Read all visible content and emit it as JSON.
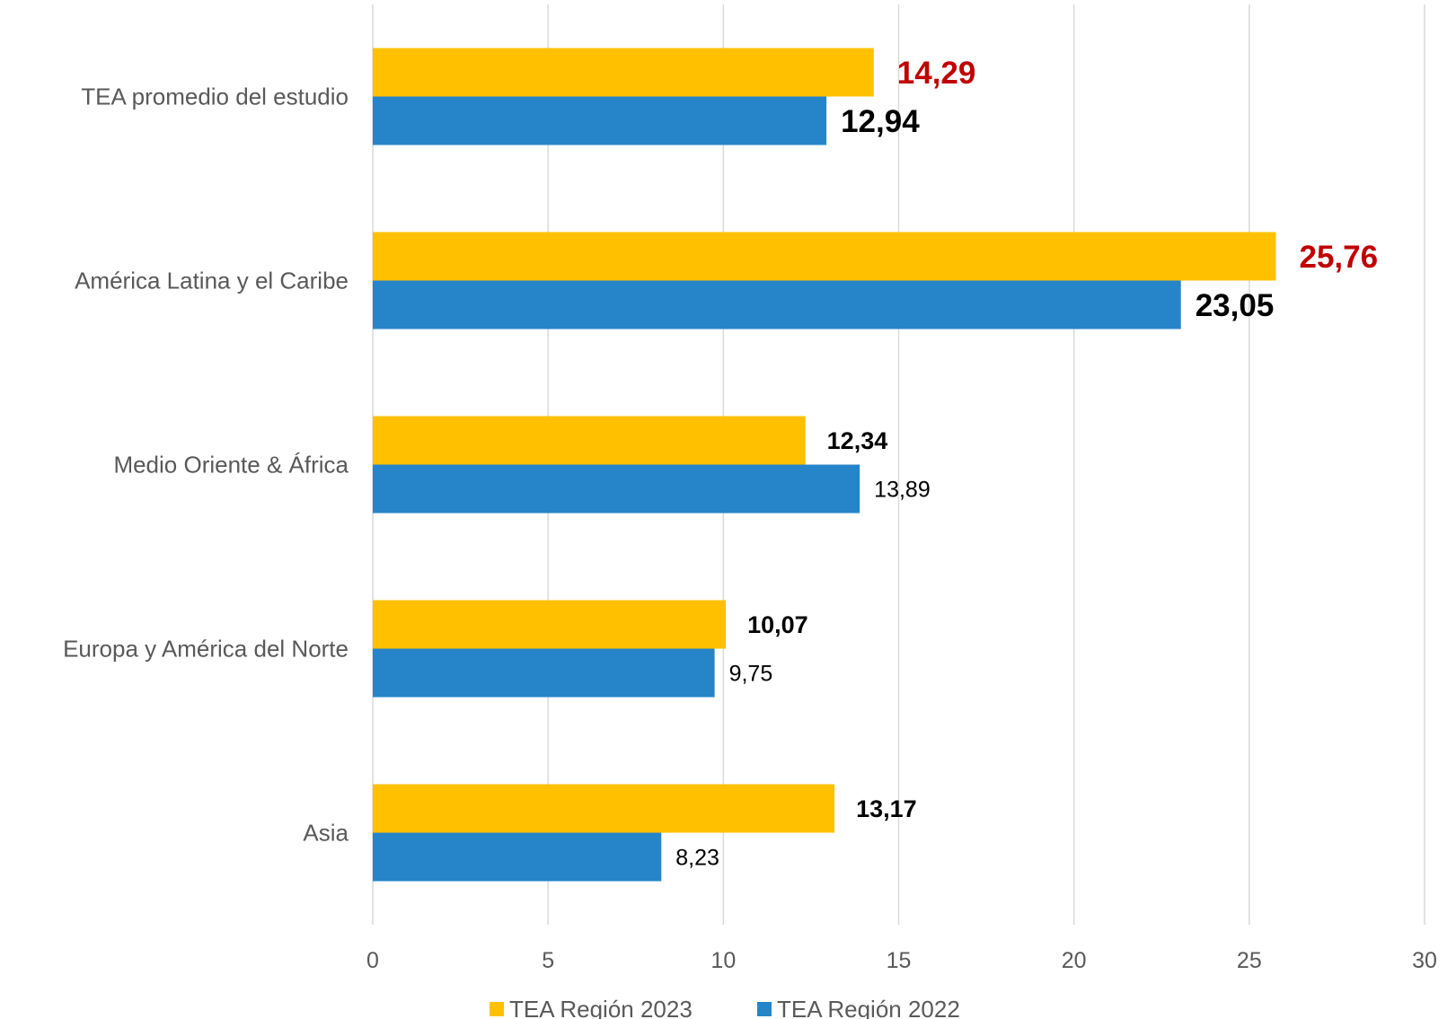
{
  "chart_data": {
    "type": "bar",
    "orientation": "horizontal",
    "title": "",
    "xlabel": "",
    "ylabel": "",
    "xlim": [
      0,
      30
    ],
    "ticks": [
      0,
      5,
      10,
      15,
      20,
      25,
      30
    ],
    "grid": true,
    "legend_position": "bottom",
    "categories": [
      "TEA promedio del estudio",
      "América Latina y el Caribe",
      "Medio Oriente & África",
      "Europa y América del Norte",
      "Asia"
    ],
    "series": [
      {
        "name": "TEA Región 2023",
        "color": "#FFC000",
        "values": [
          14.29,
          25.76,
          12.34,
          10.07,
          13.17
        ],
        "labels": [
          "14,29",
          "25,76",
          "12,34",
          "10,07",
          "13,17"
        ],
        "label_colors": [
          "#C00000",
          "#C00000",
          "#000000",
          "#000000",
          "#000000"
        ],
        "label_emphasis": [
          "large",
          "large",
          "bold",
          "bold",
          "bold"
        ]
      },
      {
        "name": "TEA Región 2022",
        "color": "#2684C8",
        "values": [
          12.94,
          23.05,
          13.89,
          9.75,
          8.23
        ],
        "labels": [
          "12,94",
          "23,05",
          "13,89",
          "9,75",
          "8,23"
        ],
        "label_colors": [
          "#000000",
          "#000000",
          "#000000",
          "#000000",
          "#000000"
        ],
        "label_emphasis": [
          "large",
          "large",
          "normal",
          "normal",
          "normal"
        ]
      }
    ]
  }
}
